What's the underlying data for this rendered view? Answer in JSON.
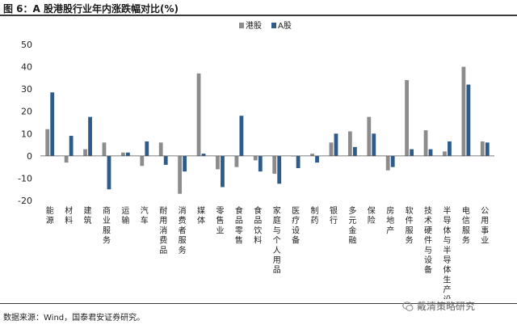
{
  "header": {
    "title": "图 6：A 股港股行业年内涨跌幅对比(%)"
  },
  "footer": {
    "source": "数据来源：Wind，国泰君安证券研究。",
    "watermark": "戴清策略研究"
  },
  "chart_data": {
    "type": "bar",
    "title": "图 6：A 股港股行业年内涨跌幅对比(%)",
    "xlabel": "",
    "ylabel": "",
    "ylim": [
      -20,
      50
    ],
    "yticks": [
      -20,
      -10,
      0,
      10,
      20,
      30,
      40,
      50
    ],
    "grid": false,
    "legend": "top-center",
    "categories": [
      "能源",
      "材料",
      "建筑",
      "商业服务",
      "运输",
      "汽车",
      "耐用消费品",
      "消费者服务",
      "媒体",
      "零售业",
      "食品零售",
      "食品饮料",
      "家庭与个人用品",
      "医疗设备",
      "制药",
      "银行",
      "多元金融",
      "保险",
      "房地产",
      "软件服务",
      "技术硬件与设备",
      "半导体与半导体生产设备",
      "电信服务",
      "公用事业"
    ],
    "series": [
      {
        "name": "港股",
        "color": "#8c8c8c",
        "values": [
          12,
          -3,
          3,
          6,
          1.5,
          -4.5,
          6,
          -17,
          37,
          -6,
          -5,
          -2,
          -8,
          0,
          1,
          6,
          11,
          17.5,
          -6.5,
          34,
          11.5,
          2,
          40,
          6.5
        ]
      },
      {
        "name": "A股",
        "color": "#2e5c8a",
        "values": [
          28.5,
          9,
          17.5,
          -15,
          1.5,
          6.5,
          -4,
          -7,
          1,
          -14,
          18,
          -7,
          -12.5,
          -5.5,
          -3,
          10,
          4,
          10,
          -5,
          3,
          3,
          6.5,
          32,
          6
        ]
      }
    ]
  }
}
